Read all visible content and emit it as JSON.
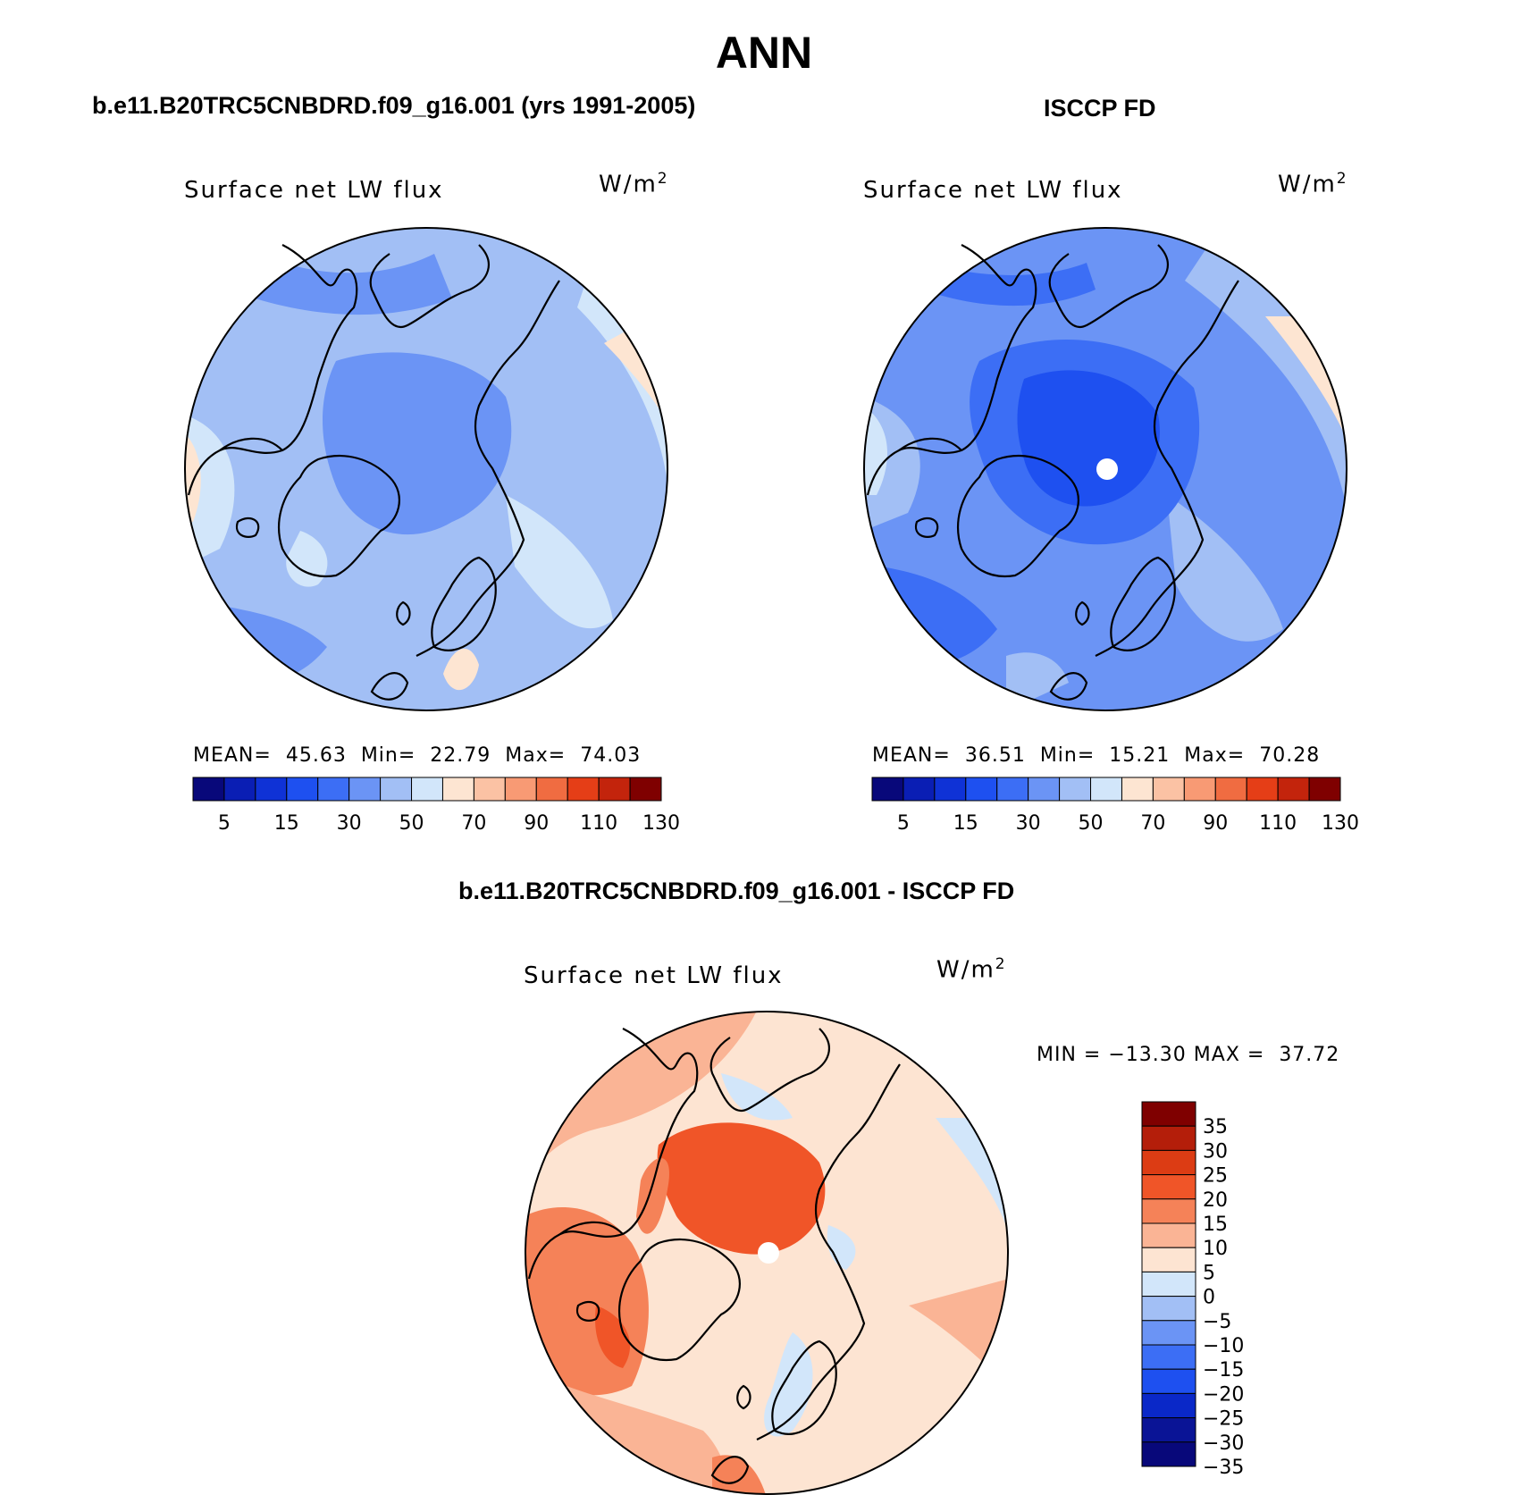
{
  "main_title": "ANN",
  "panels": [
    {
      "title": "b.e11.B20TRC5CNBDRD.f09_g16.001 (yrs 1991-2005)",
      "variable": "Surface net LW flux",
      "units_base": "W/m",
      "units_exp": "2",
      "stats": {
        "mean_label": "MEAN=",
        "mean": "45.63",
        "min_label": "Min=",
        "min": "22.79",
        "max_label": "Max=",
        "max": "74.03"
      }
    },
    {
      "title": "ISCCP FD",
      "variable": "Surface net LW flux",
      "units_base": "W/m",
      "units_exp": "2",
      "stats": {
        "mean_label": "MEAN=",
        "mean": "36.51",
        "min_label": "Min=",
        "min": "15.21",
        "max_label": "Max=",
        "max": "70.28"
      }
    },
    {
      "title": "b.e11.B20TRC5CNBDRD.f09_g16.001 - ISCCP FD",
      "variable": "Surface net LW flux",
      "units_base": "W/m",
      "units_exp": "2",
      "stats": {
        "min_label": "MIN =",
        "min": "−13.30",
        "max_label": "MAX =",
        "max": "37.72"
      }
    }
  ],
  "abs_colorbar": {
    "colors": [
      "#08087a",
      "#0a1eb4",
      "#0f32d6",
      "#1e50f0",
      "#3c6ef5",
      "#6b94f5",
      "#a2bff5",
      "#d2e6fa",
      "#fde5d2",
      "#fbc2a4",
      "#f89a74",
      "#f06c41",
      "#e53e17",
      "#c3240c",
      "#7f0000"
    ],
    "labels": [
      "5",
      "15",
      "30",
      "50",
      "70",
      "90",
      "110",
      "130"
    ]
  },
  "diff_colorbar": {
    "colors": [
      "#7f0000",
      "#b41e0a",
      "#dc3c14",
      "#f05528",
      "#f58258",
      "#fab495",
      "#fde4d2",
      "#d2e6fa",
      "#a2bff5",
      "#6b94f5",
      "#3c6ef5",
      "#1e50f0",
      "#0a28c8",
      "#0a1496",
      "#08087a"
    ],
    "labels": [
      "35",
      "30",
      "25",
      "20",
      "15",
      "10",
      "5",
      "0",
      "−5",
      "−10",
      "−15",
      "−20",
      "−25",
      "−30",
      "−35"
    ]
  }
}
